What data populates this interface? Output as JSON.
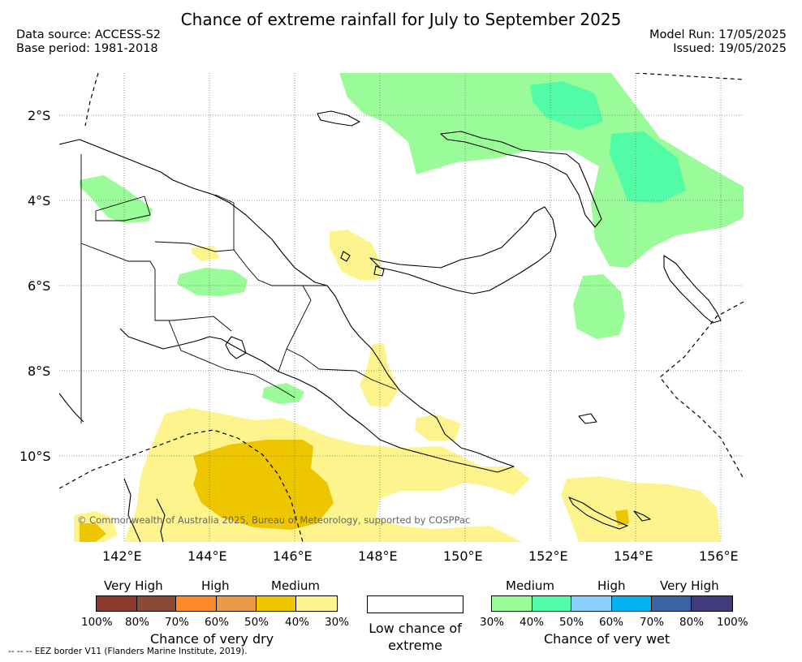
{
  "title": "Chance of extreme rainfall for July to September 2025",
  "meta": {
    "data_source": "Data source: ACCESS-S2",
    "base_period": "Base period: 1981-2018",
    "model_run": "Model Run: 17/05/2025",
    "issued": "Issued: 19/05/2025"
  },
  "map": {
    "latitude_labels": [
      "2°S",
      "4°S",
      "6°S",
      "8°S",
      "10°S"
    ],
    "longitude_labels": [
      "142°E",
      "144°E",
      "146°E",
      "148°E",
      "150°E",
      "152°E",
      "154°E",
      "156°E"
    ],
    "copyright": "© Commonwealth of Australia 2025, Bureau of Meteorology, supported by COSPPac",
    "eez_note": "-- -- -- EEZ border V11 (Flanders Marine Institute, 2019)."
  },
  "legend": {
    "dry": {
      "headings": [
        "Very High",
        "High",
        "Medium"
      ],
      "ticks": [
        "100%",
        "80%",
        "70%",
        "60%",
        "50%",
        "40%",
        "30%"
      ],
      "colors": [
        "#8b3a2e",
        "#8b4a38",
        "#ff8a2a",
        "#eb9a48",
        "#eec600",
        "#fdf48e"
      ],
      "title": "Chance of very dry"
    },
    "low": {
      "label": "Low chance of extreme"
    },
    "wet": {
      "headings": [
        "Medium",
        "High",
        "Very High"
      ],
      "ticks": [
        "30%",
        "40%",
        "50%",
        "60%",
        "70%",
        "80%",
        "100%"
      ],
      "colors": [
        "#9afc98",
        "#52fca6",
        "#88cffc",
        "#03b0f0",
        "#3a62a4",
        "#403c7c"
      ],
      "title": "Chance of very wet"
    }
  }
}
